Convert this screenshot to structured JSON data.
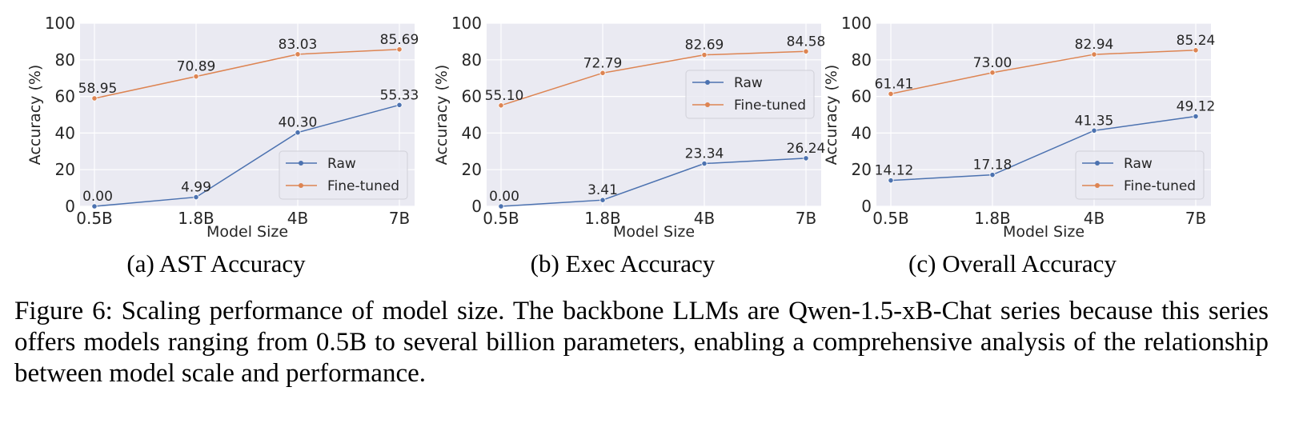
{
  "colors": {
    "background": "#eaeaf2",
    "grid": "#ffffff",
    "raw": "#4c72b0",
    "fine_tuned": "#dd8452"
  },
  "chart_data": [
    {
      "type": "line",
      "subcaption": "(a) AST Accuracy",
      "xlabel": "Model Size",
      "ylabel": "Accuracy (%)",
      "categories": [
        "0.5B",
        "1.8B",
        "4B",
        "7B"
      ],
      "ylim": [
        0,
        100
      ],
      "yticks": [
        0,
        20,
        40,
        60,
        80,
        100
      ],
      "grid": true,
      "legend": "lower-right",
      "series": [
        {
          "name": "Raw",
          "values": [
            0.0,
            4.99,
            40.3,
            55.33
          ]
        },
        {
          "name": "Fine-tuned",
          "values": [
            58.95,
            70.89,
            83.03,
            85.69
          ]
        }
      ]
    },
    {
      "type": "line",
      "subcaption": "(b) Exec Accuracy",
      "xlabel": "Model Size",
      "ylabel": "Accuracy (%)",
      "categories": [
        "0.5B",
        "1.8B",
        "4B",
        "7B"
      ],
      "ylim": [
        0,
        100
      ],
      "yticks": [
        0,
        20,
        40,
        60,
        80,
        100
      ],
      "grid": true,
      "legend": "center-right",
      "series": [
        {
          "name": "Raw",
          "values": [
            0.0,
            3.41,
            23.34,
            26.24
          ]
        },
        {
          "name": "Fine-tuned",
          "values": [
            55.1,
            72.79,
            82.69,
            84.58
          ]
        }
      ]
    },
    {
      "type": "line",
      "subcaption": "(c) Overall Accuracy",
      "xlabel": "Model Size",
      "ylabel": "Accuracy (%)",
      "categories": [
        "0.5B",
        "1.8B",
        "4B",
        "7B"
      ],
      "ylim": [
        0,
        100
      ],
      "yticks": [
        0,
        20,
        40,
        60,
        80,
        100
      ],
      "grid": true,
      "legend": "lower-right",
      "series": [
        {
          "name": "Raw",
          "values": [
            14.12,
            17.18,
            41.35,
            49.12
          ]
        },
        {
          "name": "Fine-tuned",
          "values": [
            61.41,
            73.0,
            82.94,
            85.24
          ]
        }
      ]
    }
  ],
  "caption": "Figure 6: Scaling performance of model size. The backbone LLMs are Qwen-1.5-xB-Chat series because this series offers models ranging from 0.5B to several billion parameters, enabling a comprehensive analysis of the relationship between model scale and performance."
}
